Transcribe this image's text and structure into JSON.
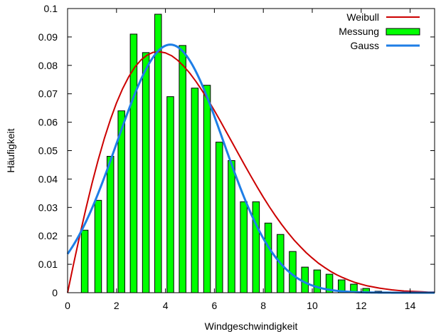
{
  "chart_data": {
    "type": "bar",
    "xlabel": "Windgeschwindigkeit",
    "ylabel": "Häufigkeit",
    "xlim": [
      0,
      15
    ],
    "ylim": [
      0,
      0.1
    ],
    "xticks": [
      0,
      2,
      4,
      6,
      8,
      10,
      12,
      14
    ],
    "xtick_labels": [
      "0",
      "2",
      "4",
      "6",
      "8",
      "10",
      "12",
      "14"
    ],
    "yticks": [
      0,
      0.01,
      0.02,
      0.03,
      0.04,
      0.05,
      0.06,
      0.07,
      0.08,
      0.09,
      0.1
    ],
    "ytick_labels": [
      "0",
      "0.01",
      "0.02",
      "0.03",
      "0.04",
      "0.05",
      "0.06",
      "0.07",
      "0.08",
      "0.09",
      "0.1"
    ],
    "grid": false,
    "legend_position": "top-right",
    "series": [
      {
        "name": "Weibull",
        "kind": "line",
        "color": "#cc0000",
        "x": [
          0,
          0.25,
          0.5,
          0.75,
          1,
          1.25,
          1.5,
          1.75,
          2,
          2.25,
          2.5,
          2.75,
          3,
          3.25,
          3.5,
          3.75,
          4,
          4.25,
          4.5,
          4.75,
          5,
          5.25,
          5.5,
          5.75,
          6,
          6.25,
          6.5,
          6.75,
          7,
          7.25,
          7.5,
          7.75,
          8,
          8.25,
          8.5,
          8.75,
          9,
          9.25,
          9.5,
          9.75,
          10,
          10.25,
          10.5,
          10.75,
          11,
          11.25,
          11.5,
          11.75,
          12,
          12.25,
          12.5,
          12.75,
          13,
          13.25,
          13.5,
          13.75,
          14,
          14.25,
          14.5,
          14.75,
          15
        ],
        "y": [
          0,
          0.0103,
          0.0202,
          0.0296,
          0.0385,
          0.0467,
          0.0542,
          0.0609,
          0.0668,
          0.0718,
          0.076,
          0.0794,
          0.0819,
          0.0836,
          0.0846,
          0.0848,
          0.0844,
          0.0834,
          0.0818,
          0.0797,
          0.0772,
          0.0743,
          0.0711,
          0.0677,
          0.0641,
          0.0603,
          0.0564,
          0.0525,
          0.0486,
          0.0447,
          0.0409,
          0.0372,
          0.0336,
          0.0302,
          0.027,
          0.024,
          0.0212,
          0.0186,
          0.0163,
          0.0141,
          0.0122,
          0.0104,
          0.0089,
          0.0075,
          0.0063,
          0.0053,
          0.0044,
          0.0036,
          0.003,
          0.0024,
          0.002,
          0.0016,
          0.0013,
          0.001,
          0.0008,
          0.0006,
          0.0005,
          0.0004,
          0.0003,
          0.0002,
          0.0002
        ]
      },
      {
        "name": "Messung",
        "kind": "bar",
        "color": "#00ff00",
        "x": [
          0.7,
          1.25,
          1.75,
          2.2,
          2.7,
          3.2,
          3.7,
          4.2,
          4.7,
          5.2,
          5.7,
          6.2,
          6.7,
          7.2,
          7.7,
          8.2,
          8.7,
          9.2,
          9.7,
          10.2,
          10.7,
          11.2,
          11.7,
          12.2,
          12.7
        ],
        "values": [
          0.022,
          0.0325,
          0.048,
          0.064,
          0.091,
          0.0845,
          0.098,
          0.069,
          0.087,
          0.072,
          0.073,
          0.053,
          0.0465,
          0.032,
          0.032,
          0.0245,
          0.0205,
          0.0145,
          0.009,
          0.008,
          0.0065,
          0.0045,
          0.003,
          0.0015,
          0.0005
        ]
      },
      {
        "name": "Gauss",
        "kind": "line",
        "color": "#1e7ee6",
        "mean": 4.2,
        "std": 2.18,
        "y_at_mean": 0.0873
      }
    ]
  }
}
